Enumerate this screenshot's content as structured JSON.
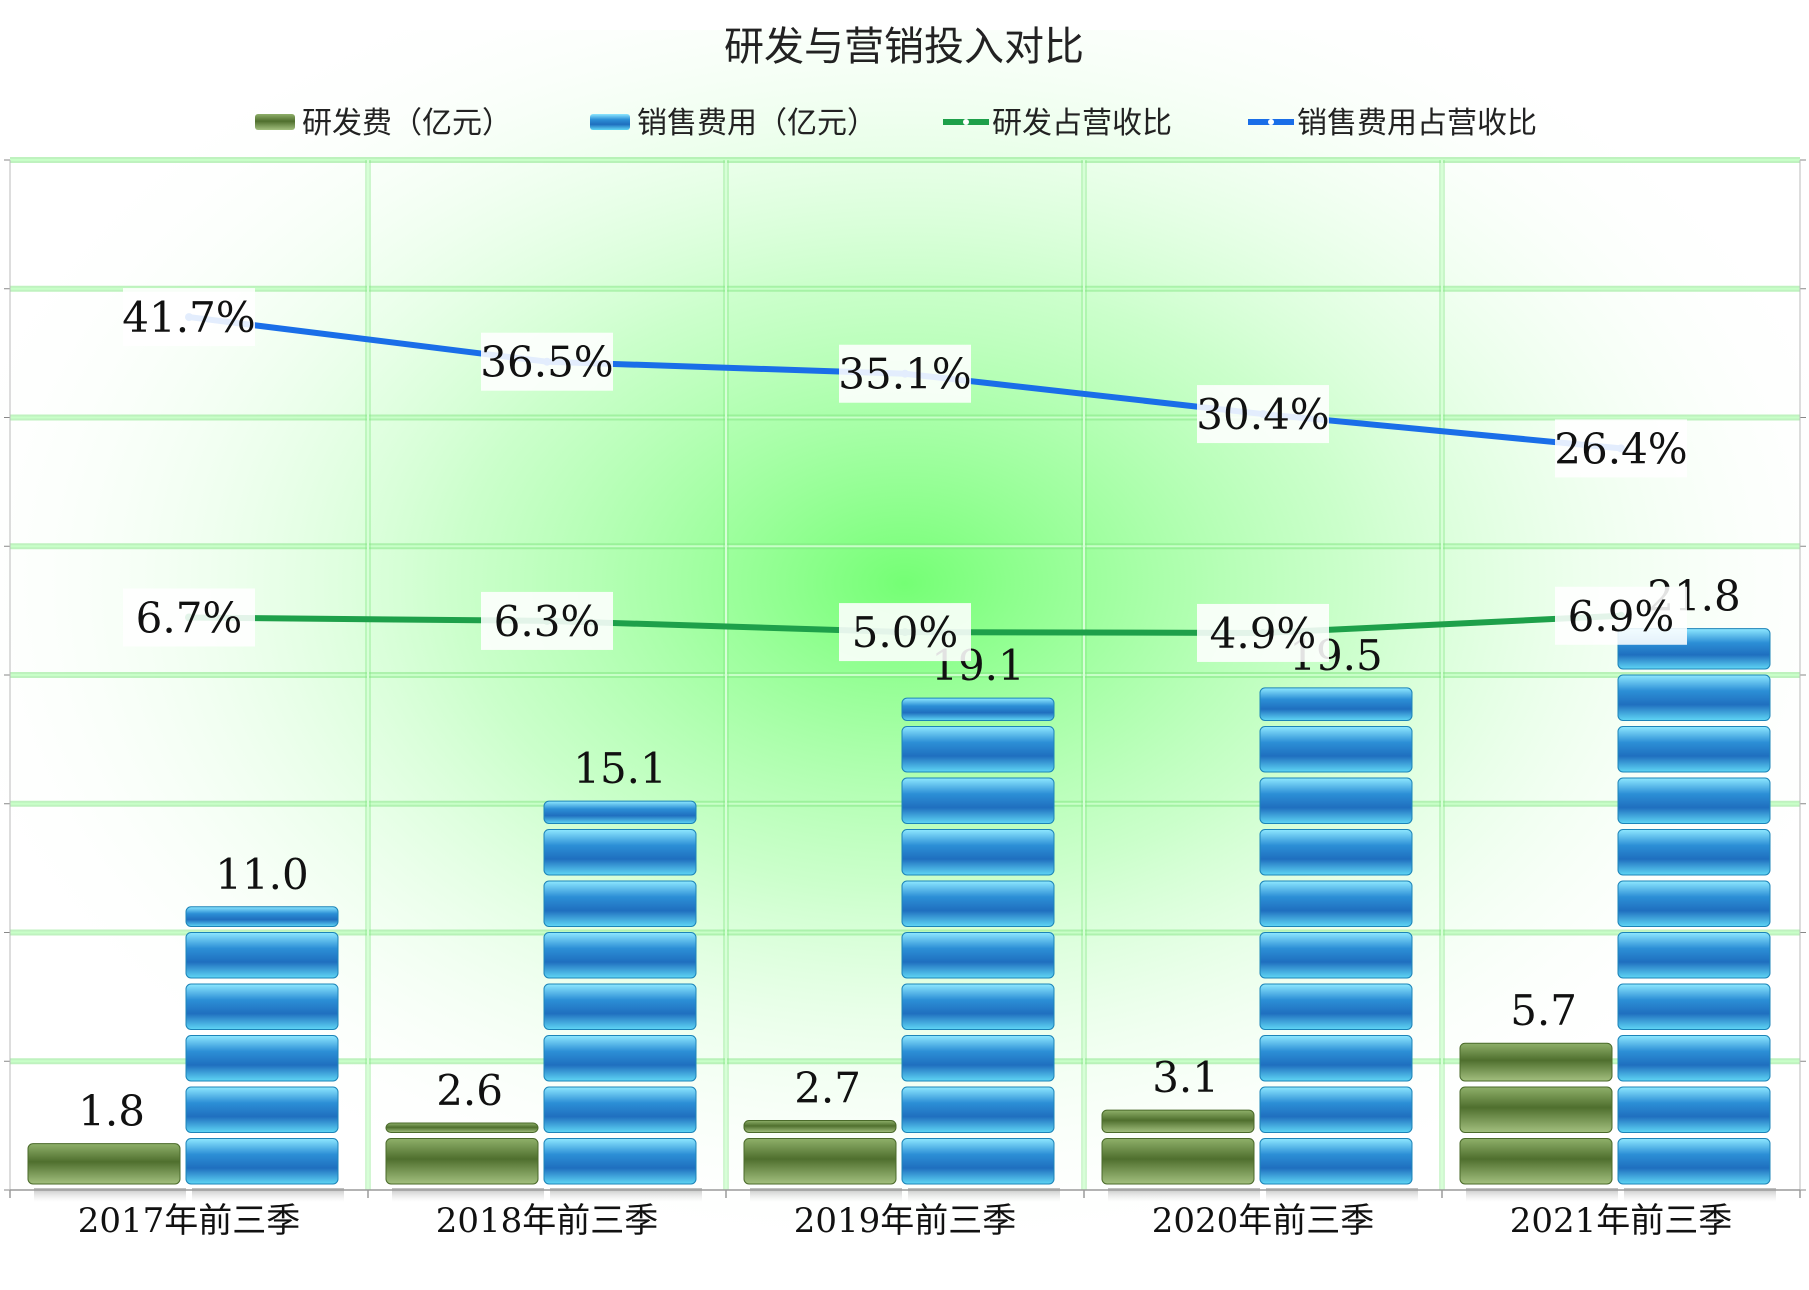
{
  "chart_data": {
    "type": "bar",
    "title": "研发与营销投入对比",
    "categories": [
      "2017年前三季",
      "2018年前三季",
      "2019年前三季",
      "2020年前三季",
      "2021年前三季"
    ],
    "series": [
      {
        "name": "研发费（亿元）",
        "kind": "bar",
        "axis": "primary",
        "values": [
          1.8,
          2.6,
          2.7,
          3.1,
          5.7
        ],
        "labels": [
          "1.8",
          "2.6",
          "2.7",
          "3.1",
          "5.7"
        ]
      },
      {
        "name": "销售费用（亿元）",
        "kind": "bar",
        "axis": "primary",
        "values": [
          11.0,
          15.1,
          19.1,
          19.5,
          21.8
        ],
        "labels": [
          "11.0",
          "15.1",
          "19.1",
          "19.5",
          "21.8"
        ]
      },
      {
        "name": "研发占营收比",
        "kind": "line",
        "axis": "secondary",
        "values": [
          6.7,
          6.3,
          5.0,
          4.9,
          6.9
        ],
        "labels": [
          "6.7%",
          "6.3%",
          "5.0%",
          "4.9%",
          "6.9%"
        ]
      },
      {
        "name": "销售费用占营收比",
        "kind": "line",
        "axis": "secondary",
        "values": [
          41.7,
          36.5,
          35.1,
          30.4,
          26.4
        ],
        "labels": [
          "41.7%",
          "36.5%",
          "35.1%",
          "30.4%",
          "26.4%"
        ]
      }
    ],
    "ylim_primary": [
      0,
      40
    ],
    "ylim_secondary": [
      -60,
      60
    ],
    "grid": true,
    "legend_position": "top",
    "colors": {
      "rd_bar": "#5f7f3a",
      "sales_bar": "#2aa8d8",
      "rd_line": "#1ea04a",
      "sales_line": "#1a6ee8",
      "grid": "#7fe67f",
      "glow": "#6dff6d"
    }
  }
}
